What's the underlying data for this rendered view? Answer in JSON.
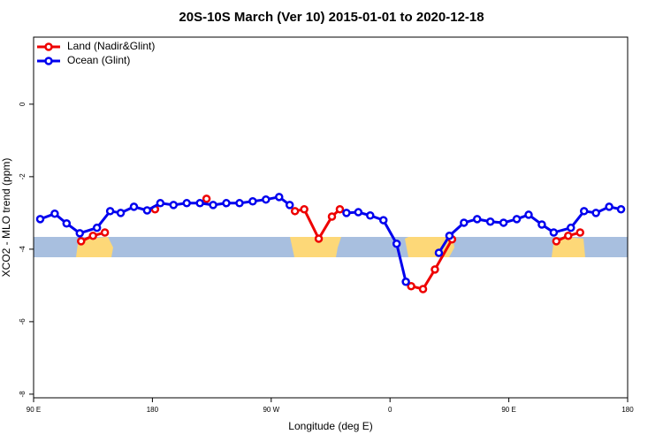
{
  "chart_data": {
    "type": "line",
    "title": "20S-10S March (Ver 10)   2015-01-01 to 2020-12-18",
    "xlabel": "Longitude (deg E)",
    "ylabel": "XCO2 - MLO trend (ppm)",
    "xlim": [
      90,
      540
    ],
    "ylim": [
      -8.1,
      1.85
    ],
    "xticks": [
      {
        "value": 90,
        "label": "90 E"
      },
      180,
      {
        "value": 270,
        "label": "90 W"
      },
      {
        "value": 360,
        "label": "0"
      },
      {
        "value": 450,
        "label": "90 E"
      },
      {
        "value": 540,
        "label": "180"
      }
    ],
    "yticks": [
      -8,
      -6,
      -4,
      -2,
      0
    ],
    "grid": false,
    "legend": "top-left",
    "series": [
      {
        "name": "Land (Nadir&Glint)",
        "color": "#ee0000",
        "x": [
          126,
          135,
          144,
          163,
          182,
          202,
          221,
          254,
          288,
          295,
          306,
          316,
          322,
          349,
          376,
          385,
          394,
          407,
          446,
          486,
          495,
          504
        ],
        "values": [
          -3.78,
          -3.63,
          -3.54,
          null,
          -2.9,
          null,
          -2.61,
          null,
          -2.95,
          -2.9,
          -3.71,
          -3.1,
          -2.9,
          null,
          -5.02,
          -5.1,
          -4.56,
          -3.73,
          null,
          -3.78,
          -3.63,
          -3.54
        ]
      },
      {
        "name": "Ocean (Glint)",
        "color": "#0000ee",
        "x": [
          95,
          106,
          115,
          125,
          138,
          148,
          156,
          166,
          176,
          186,
          196,
          206,
          216,
          226,
          236,
          246,
          256,
          266,
          276,
          284,
          305,
          327,
          336,
          345,
          355,
          365,
          372,
          385,
          397,
          405,
          416,
          426,
          436,
          446,
          456,
          465,
          475,
          484,
          497,
          507,
          516,
          526,
          535
        ],
        "values": [
          -3.17,
          -3.02,
          -3.29,
          -3.56,
          -3.41,
          -2.95,
          -3.0,
          -2.83,
          -2.93,
          -2.73,
          -2.78,
          -2.73,
          -2.73,
          -2.78,
          -2.73,
          -2.73,
          -2.68,
          -2.63,
          -2.56,
          -2.78,
          null,
          -3.0,
          -2.98,
          -3.07,
          -3.2,
          -3.85,
          -4.9,
          null,
          -4.1,
          -3.63,
          -3.27,
          -3.17,
          -3.24,
          -3.27,
          -3.17,
          -3.05,
          -3.32,
          -3.54,
          -3.41,
          -2.95,
          -3.0,
          -2.83,
          -2.9
        ]
      }
    ]
  }
}
